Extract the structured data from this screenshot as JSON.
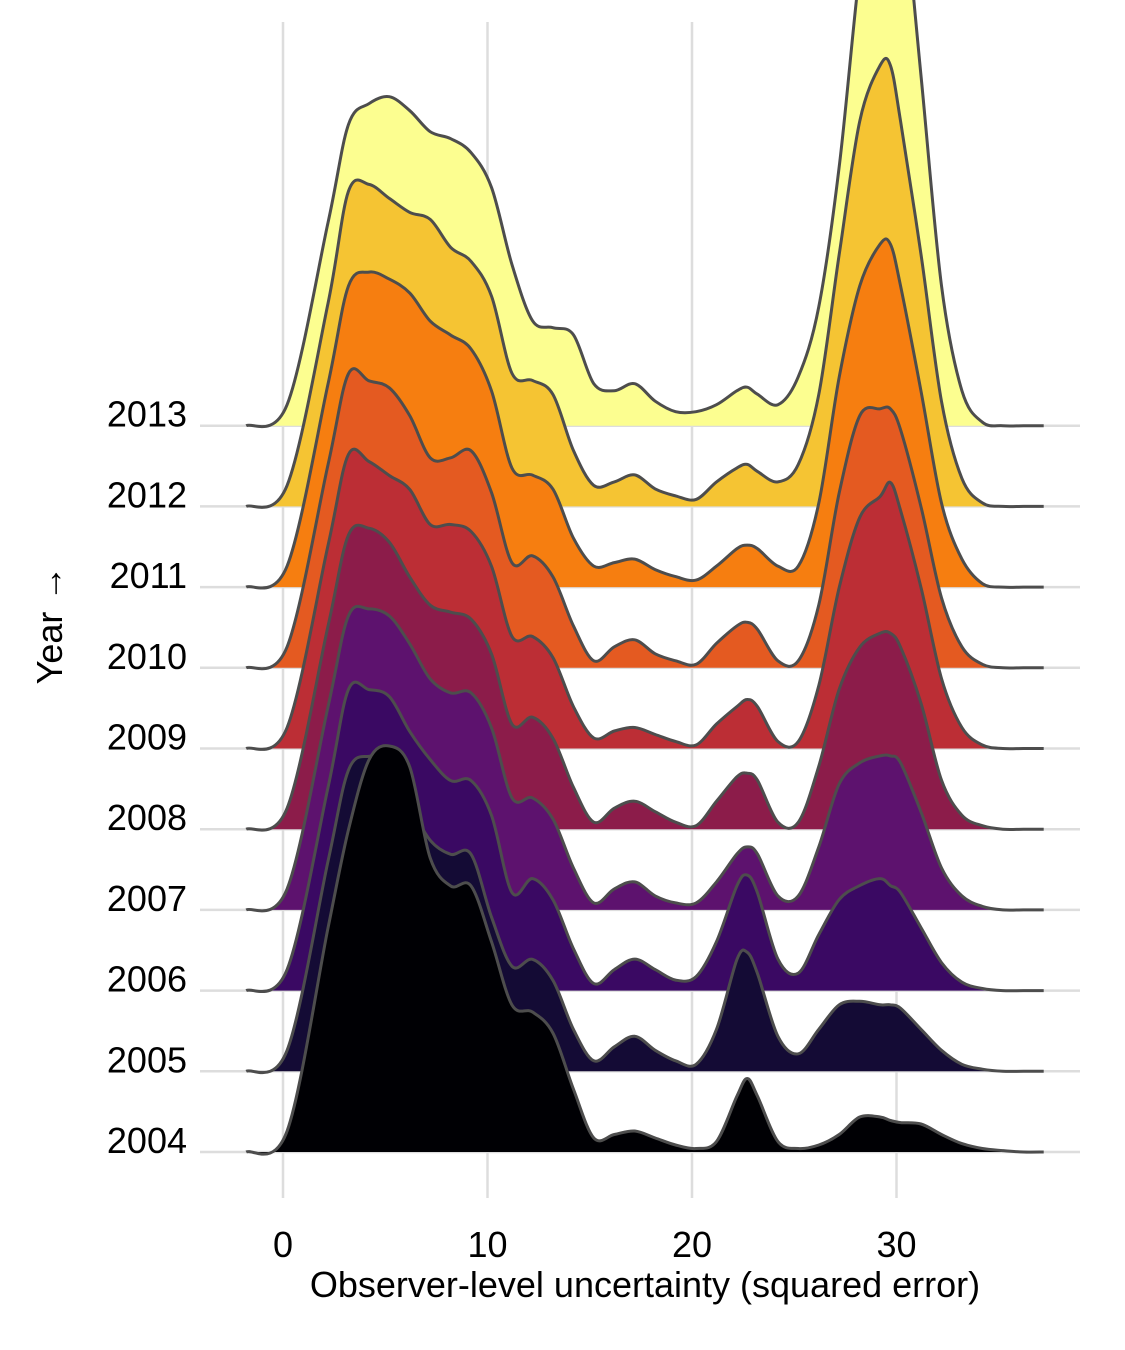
{
  "chart_data": {
    "type": "ridgeline",
    "xlabel": "Observer-level uncertainty (squared error)",
    "ylabel": "Year →",
    "xlim": [
      -2,
      38
    ],
    "x_ticks": [
      "0",
      "10",
      "20",
      "30"
    ],
    "x_tick_values": [
      0,
      10,
      20,
      30
    ],
    "grid": true,
    "palette": "inferno",
    "density_x": [
      -2,
      0,
      2,
      3,
      4,
      5,
      6,
      7,
      8,
      9,
      10,
      11,
      12,
      13,
      14,
      15,
      16,
      17,
      18,
      19,
      20,
      21,
      22,
      22.5,
      23,
      24,
      25,
      26,
      27,
      28,
      29,
      29.5,
      30,
      31,
      32,
      33,
      34,
      35,
      36,
      37
    ],
    "series": [
      {
        "name": "2004",
        "color": "#000004",
        "density": [
          0,
          0.3,
          3.2,
          4.6,
          5.6,
          5.8,
          5.5,
          4.2,
          3.8,
          3.8,
          3.0,
          2.1,
          2.0,
          1.7,
          0.9,
          0.2,
          0.25,
          0.3,
          0.2,
          0.1,
          0.05,
          0.15,
          0.8,
          1.05,
          0.8,
          0.15,
          0.05,
          0.1,
          0.25,
          0.5,
          0.5,
          0.45,
          0.42,
          0.4,
          0.25,
          0.12,
          0.05,
          0.02,
          0,
          0
        ]
      },
      {
        "name": "2005",
        "color": "#140b35",
        "density": [
          0,
          0.3,
          3.0,
          4.3,
          4.5,
          4.4,
          3.8,
          3.3,
          3.1,
          3.1,
          2.2,
          1.5,
          1.6,
          1.3,
          0.6,
          0.15,
          0.35,
          0.5,
          0.3,
          0.15,
          0.1,
          0.6,
          1.6,
          1.7,
          1.4,
          0.5,
          0.25,
          0.6,
          0.95,
          1.0,
          0.95,
          0.95,
          0.9,
          0.6,
          0.3,
          0.1,
          0.03,
          0,
          0,
          0
        ]
      },
      {
        "name": "2006",
        "color": "#3a0963",
        "density": [
          0,
          0.3,
          2.9,
          4.3,
          4.3,
          4.2,
          3.7,
          3.3,
          3.0,
          3.0,
          2.5,
          1.4,
          1.6,
          1.3,
          0.6,
          0.1,
          0.3,
          0.45,
          0.3,
          0.15,
          0.2,
          0.7,
          1.5,
          1.65,
          1.4,
          0.45,
          0.25,
          0.8,
          1.3,
          1.5,
          1.6,
          1.5,
          1.4,
          0.9,
          0.4,
          0.12,
          0.03,
          0,
          0,
          0
        ]
      },
      {
        "name": "2007",
        "color": "#5d126e",
        "density": [
          0,
          0.3,
          2.9,
          4.2,
          4.3,
          4.2,
          3.8,
          3.3,
          3.1,
          3.1,
          2.6,
          1.6,
          1.6,
          1.3,
          0.6,
          0.1,
          0.3,
          0.4,
          0.2,
          0.1,
          0.1,
          0.4,
          0.8,
          0.9,
          0.8,
          0.2,
          0.2,
          0.9,
          1.8,
          2.1,
          2.2,
          2.2,
          2.1,
          1.4,
          0.6,
          0.2,
          0.05,
          0,
          0,
          0
        ]
      },
      {
        "name": "2008",
        "color": "#8c1c4a",
        "density": [
          0,
          0.3,
          2.9,
          4.2,
          4.3,
          4.1,
          3.6,
          3.2,
          3.1,
          3.0,
          2.5,
          1.5,
          1.6,
          1.3,
          0.6,
          0.1,
          0.3,
          0.4,
          0.25,
          0.1,
          0.05,
          0.4,
          0.75,
          0.8,
          0.7,
          0.1,
          0.1,
          0.9,
          2.0,
          2.6,
          2.8,
          2.8,
          2.6,
          1.8,
          0.7,
          0.2,
          0.05,
          0,
          0,
          0
        ]
      },
      {
        "name": "2009",
        "color": "#bc2e35",
        "density": [
          0,
          0.3,
          2.9,
          4.2,
          4.1,
          3.9,
          3.7,
          3.2,
          3.2,
          3.1,
          2.6,
          1.6,
          1.6,
          1.3,
          0.6,
          0.15,
          0.25,
          0.3,
          0.2,
          0.1,
          0.05,
          0.35,
          0.6,
          0.7,
          0.6,
          0.1,
          0.1,
          0.9,
          2.3,
          3.3,
          3.6,
          3.8,
          3.4,
          2.3,
          1.0,
          0.3,
          0.05,
          0,
          0,
          0
        ]
      },
      {
        "name": "2010",
        "color": "#e45a21",
        "density": [
          0,
          0.3,
          2.9,
          4.2,
          4.1,
          4.0,
          3.6,
          3.0,
          3.0,
          3.1,
          2.5,
          1.5,
          1.6,
          1.3,
          0.6,
          0.1,
          0.3,
          0.4,
          0.2,
          0.1,
          0.05,
          0.35,
          0.6,
          0.65,
          0.55,
          0.1,
          0.1,
          0.9,
          2.5,
          3.6,
          3.7,
          3.7,
          3.4,
          2.3,
          1.0,
          0.3,
          0.05,
          0,
          0,
          0
        ]
      },
      {
        "name": "2011",
        "color": "#f67e10",
        "density": [
          0,
          0.3,
          2.9,
          4.3,
          4.5,
          4.4,
          4.2,
          3.8,
          3.6,
          3.4,
          2.8,
          1.7,
          1.6,
          1.4,
          0.7,
          0.3,
          0.35,
          0.4,
          0.25,
          0.15,
          0.1,
          0.3,
          0.55,
          0.6,
          0.55,
          0.3,
          0.3,
          1.2,
          3.0,
          4.3,
          4.9,
          4.9,
          4.3,
          2.8,
          1.2,
          0.4,
          0.05,
          0,
          0,
          0
        ]
      },
      {
        "name": "2012",
        "color": "#f5c433",
        "density": [
          0,
          0.3,
          2.9,
          4.5,
          4.6,
          4.4,
          4.2,
          4.1,
          3.7,
          3.5,
          3.0,
          1.9,
          1.8,
          1.6,
          0.8,
          0.3,
          0.35,
          0.45,
          0.25,
          0.15,
          0.1,
          0.35,
          0.55,
          0.6,
          0.5,
          0.35,
          0.6,
          1.6,
          3.6,
          5.5,
          6.3,
          6.3,
          5.5,
          3.6,
          1.5,
          0.4,
          0.05,
          0,
          0,
          0
        ]
      },
      {
        "name": "2013",
        "color": "#fcfe90",
        "density": [
          0,
          0.3,
          2.9,
          4.3,
          4.6,
          4.7,
          4.5,
          4.2,
          4.1,
          3.9,
          3.4,
          2.3,
          1.5,
          1.4,
          1.3,
          0.6,
          0.5,
          0.6,
          0.35,
          0.2,
          0.2,
          0.3,
          0.5,
          0.55,
          0.45,
          0.3,
          0.7,
          1.7,
          3.7,
          6.5,
          8.5,
          8.8,
          8.0,
          5.0,
          2.0,
          0.5,
          0.05,
          0,
          0,
          0
        ]
      }
    ]
  }
}
